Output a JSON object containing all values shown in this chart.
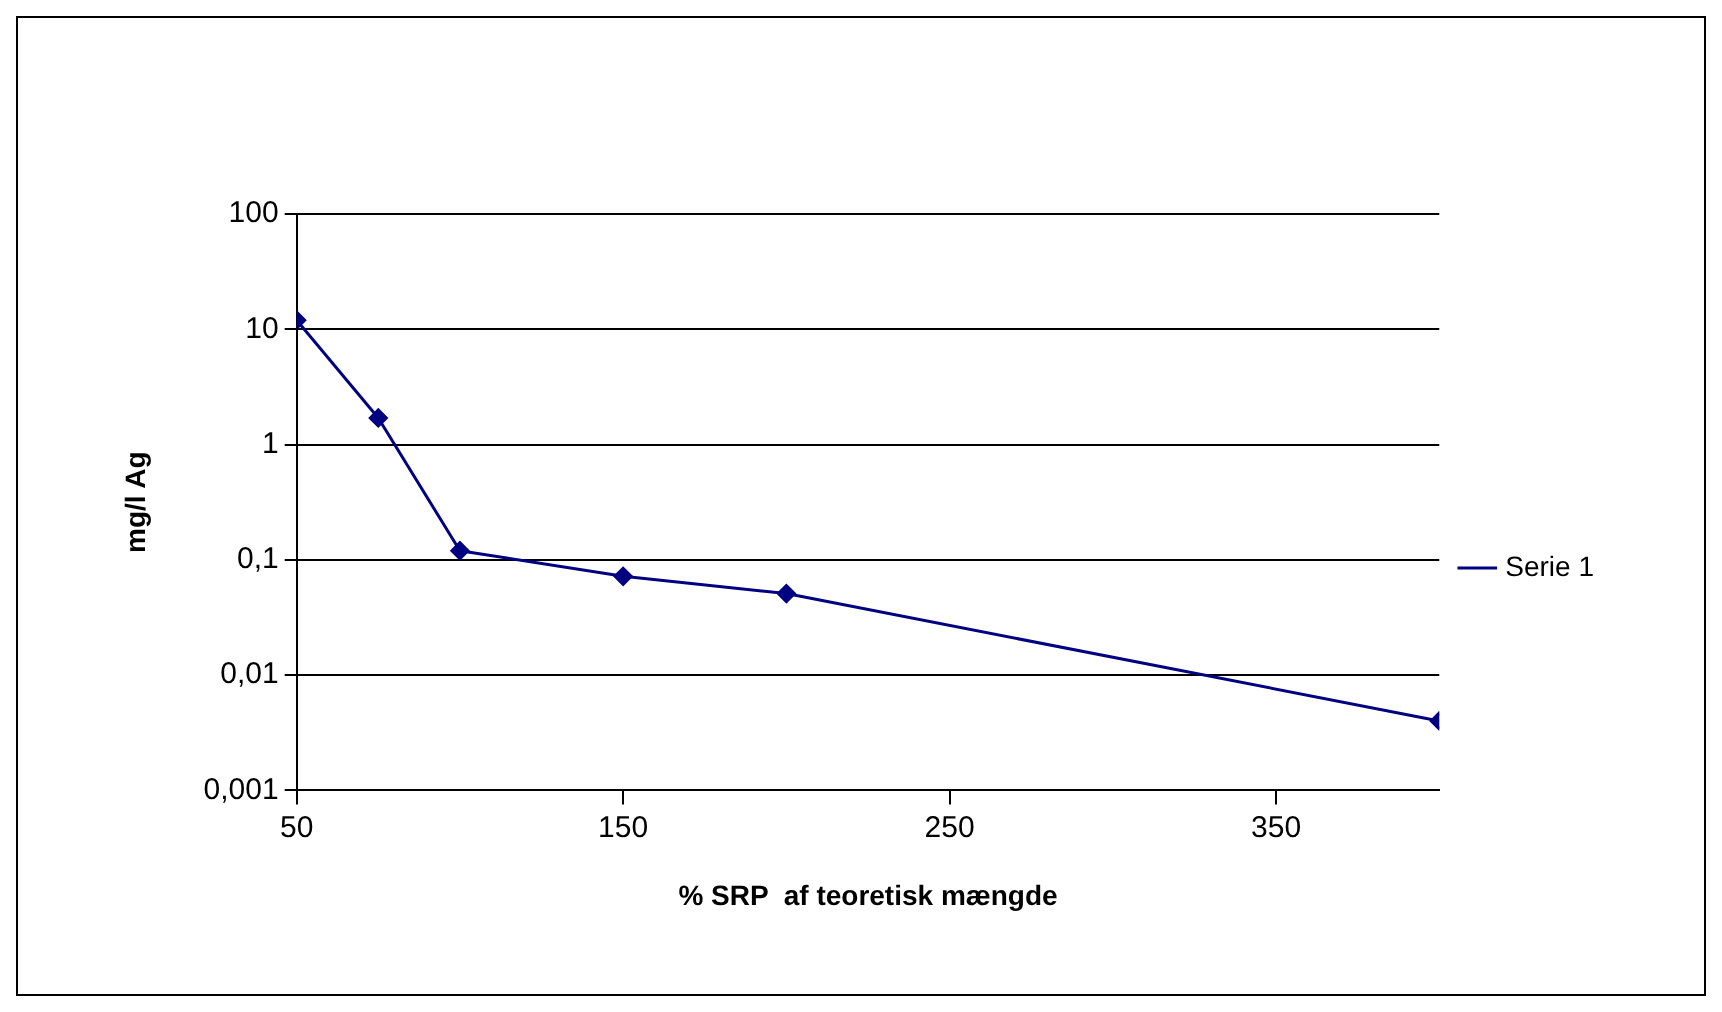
{
  "chart_data": {
    "type": "line",
    "xlabel": "% SRP  af teoretisk mængde",
    "ylabel": "mg/l Ag",
    "x": [
      50,
      75,
      100,
      150,
      200,
      400
    ],
    "series": [
      {
        "name": "Serie 1",
        "color": "#000080",
        "values": [
          12,
          1.7,
          0.12,
          0.072,
          0.051,
          0.004
        ]
      }
    ],
    "xlim": [
      50,
      400
    ],
    "xticks": [
      50,
      150,
      250,
      350
    ],
    "ylim": [
      0.001,
      100
    ],
    "yticks": [
      {
        "value": 0.001,
        "label": "0,001"
      },
      {
        "value": 0.01,
        "label": "0,01"
      },
      {
        "value": 0.1,
        "label": "0,1"
      },
      1,
      10,
      100
    ],
    "log": "y",
    "grid": "y",
    "legend": "right",
    "marker": "diamond",
    "line_style": "solid"
  }
}
